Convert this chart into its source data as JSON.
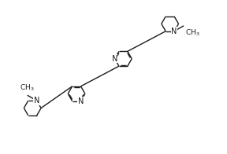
{
  "background_color": "#ffffff",
  "line_color": "#1a1a1a",
  "figsize": [
    2.88,
    1.96
  ],
  "dpi": 100,
  "lw": 1.0,
  "ring_r": 0.22,
  "xlim": [
    0.0,
    5.8
  ],
  "ylim": [
    0.3,
    4.0
  ],
  "font_size": 7.0
}
